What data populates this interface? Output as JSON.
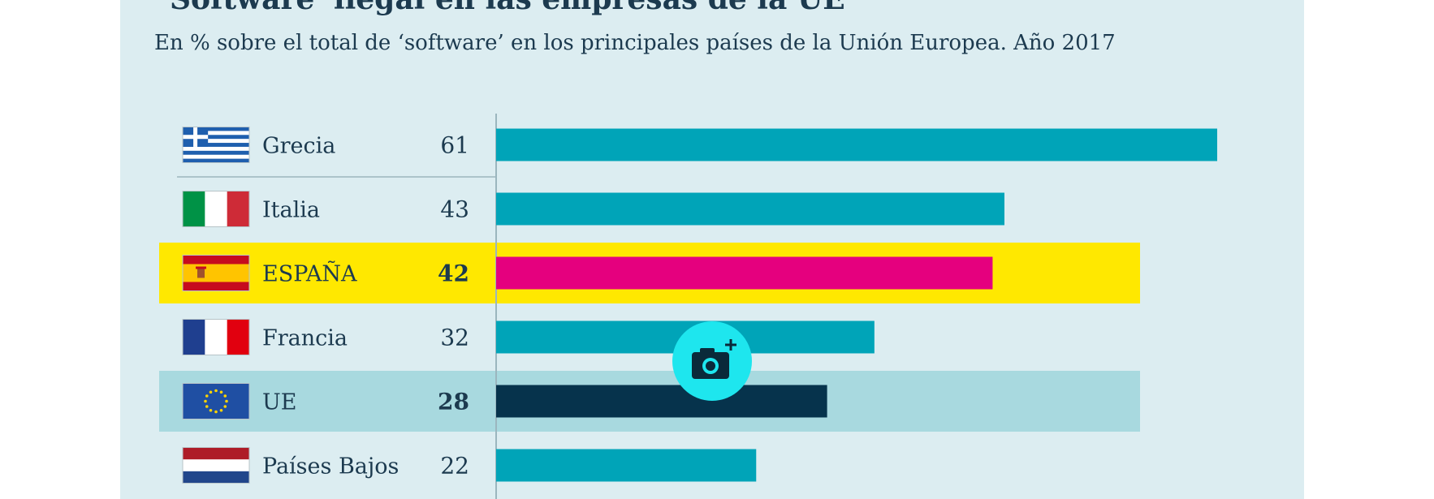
{
  "header": {
    "title": "'Software' ilegal en las empresas de la UE",
    "subtitle": "En % sobre el total de ‘software’ en los principales países de la Unión Europea. Año 2017"
  },
  "chart_data": {
    "type": "bar",
    "orientation": "horizontal",
    "title": "'Software' ilegal en las empresas de la UE",
    "subtitle": "En % sobre el total de ‘software’ en los principales países de la Unión Europea. Año 2017",
    "unit": "%",
    "xlim": [
      0,
      61
    ],
    "categories": [
      "Grecia",
      "Italia",
      "ESPAÑA",
      "Francia",
      "UE",
      "Países Bajos"
    ],
    "values": [
      61,
      43,
      42,
      32,
      28,
      22
    ],
    "highlight": [
      "none",
      "none",
      "spain",
      "none",
      "eu",
      "none"
    ],
    "colors": {
      "default": "#00a4b8",
      "spain_bar": "#e5007e",
      "spain_row": "#ffe800",
      "eu_bar": "#06334c",
      "eu_row": "#a8d9df",
      "text": "#1c3a4f"
    }
  },
  "overlay": {
    "camera_icon": "camera-plus-icon"
  }
}
